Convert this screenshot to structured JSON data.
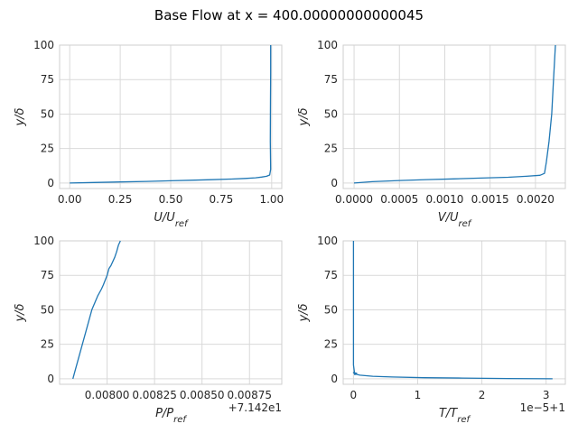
{
  "figure": {
    "title": "Base Flow at x = 400.00000000000045",
    "line_color": "#1f77b4"
  },
  "chart_data": [
    {
      "type": "line",
      "xlabel": "U/U_ref",
      "ylabel": "y/δ",
      "xlim": [
        -0.05,
        1.05
      ],
      "ylim": [
        -4,
        100
      ],
      "xticks": [
        "0.00",
        "0.25",
        "0.50",
        "0.75",
        "1.00"
      ],
      "xtick_values": [
        0,
        0.25,
        0.5,
        0.75,
        1.0
      ],
      "yticks": [
        "0",
        "25",
        "50",
        "75",
        "100"
      ],
      "ytick_values": [
        0,
        25,
        50,
        75,
        100
      ],
      "offset_text": "",
      "grid": true,
      "x": [
        0,
        0.12,
        0.25,
        0.38,
        0.5,
        0.6,
        0.7,
        0.8,
        0.87,
        0.92,
        0.95,
        0.975,
        0.99,
        0.995,
        0.993,
        0.994,
        0.995,
        0.995
      ],
      "y": [
        0,
        0.4,
        0.8,
        1.2,
        1.6,
        2.0,
        2.4,
        2.9,
        3.3,
        3.8,
        4.3,
        4.9,
        5.8,
        10,
        30,
        60,
        80,
        100
      ]
    },
    {
      "type": "line",
      "xlabel": "V/U_ref",
      "ylabel": "y/δ",
      "xlim": [
        -0.00012,
        0.00233
      ],
      "ylim": [
        -4,
        100
      ],
      "xticks": [
        "0.0000",
        "0.0005",
        "0.0010",
        "0.0015",
        "0.0020"
      ],
      "xtick_values": [
        0,
        0.0005,
        0.001,
        0.0015,
        0.002
      ],
      "yticks": [
        "0",
        "25",
        "50",
        "75",
        "100"
      ],
      "ytick_values": [
        0,
        25,
        50,
        75,
        100
      ],
      "offset_text": "",
      "grid": true,
      "x": [
        0,
        0.0002,
        0.0005,
        0.0008,
        0.0011,
        0.0014,
        0.0017,
        0.0019,
        0.00205,
        0.0021,
        0.00212,
        0.00215,
        0.00218,
        0.0022,
        0.00222
      ],
      "y": [
        0,
        1,
        1.8,
        2.5,
        3.0,
        3.6,
        4.2,
        4.9,
        5.6,
        7,
        15,
        30,
        50,
        75,
        100
      ]
    },
    {
      "type": "line",
      "xlabel": "P/P_ref",
      "ylabel": "y/δ",
      "xlim": [
        0.00775,
        0.00892
      ],
      "ylim": [
        -4,
        100
      ],
      "xticks": [
        "0.00800",
        "0.00825",
        "0.00850",
        "0.00875"
      ],
      "xtick_values": [
        0.008,
        0.00825,
        0.0085,
        0.00875
      ],
      "yticks": [
        "0",
        "25",
        "50",
        "75",
        "100"
      ],
      "ytick_values": [
        0,
        25,
        50,
        75,
        100
      ],
      "offset_text": "+7.142e1",
      "grid": true,
      "x": [
        0.00782,
        0.00783,
        0.00786,
        0.00789,
        0.00792,
        0.00795,
        0.00797,
        0.00798,
        0.008,
        0.00801,
        0.00802,
        0.00804,
        0.00805,
        0.00806,
        0.00807
      ],
      "y": [
        0,
        5,
        20,
        35,
        50,
        60,
        65,
        68,
        75,
        80,
        82,
        88,
        92,
        97,
        100
      ]
    },
    {
      "type": "line",
      "xlabel": "T/T_ref",
      "ylabel": "y/δ",
      "xlim": [
        -0.16,
        3.3
      ],
      "ylim": [
        -4,
        100
      ],
      "xticks": [
        "0",
        "1",
        "2",
        "3"
      ],
      "xtick_values": [
        0,
        1,
        2,
        3
      ],
      "yticks": [
        "0",
        "25",
        "50",
        "75",
        "100"
      ],
      "ytick_values": [
        0,
        25,
        50,
        75,
        100
      ],
      "offset_text": "1e−5+1",
      "grid": true,
      "x": [
        3.1,
        2.4,
        1.7,
        1.1,
        0.6,
        0.3,
        0.1,
        0.02,
        0.0,
        0.05,
        0.02,
        0.0,
        0.0,
        0.0
      ],
      "y": [
        0,
        0.2,
        0.5,
        0.8,
        1.3,
        1.8,
        2.6,
        3.5,
        4.5,
        4,
        3,
        10,
        50,
        100
      ]
    }
  ]
}
